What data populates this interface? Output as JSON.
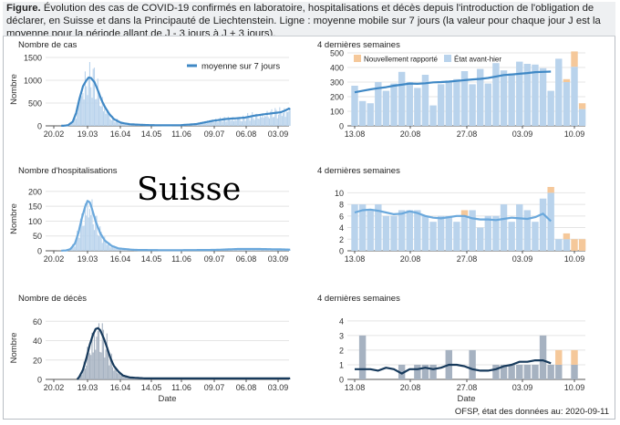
{
  "caption": {
    "label": "Figure.",
    "text": "Évolution des cas de COVID-19 confirmés en laboratoire, hospitalisations et décès depuis l'introduction de l'obligation de déclarer, en Suisse et dans la Principauté de Liechtenstein. Ligne : moyenne mobile sur 7 jours (la valeur pour chaque jour J est la moyenne pour la période allant de J - 3 jours à J + 3 jours)."
  },
  "country_label": "Suisse",
  "source": "OFSP, état des données au: 2020-09-11",
  "colors": {
    "cases_bar": "#b9d3ec",
    "cases_line": "#3f88c5",
    "hosp_bar": "#b9d3ec",
    "hosp_line": "#6aa8dc",
    "death_bar": "#a6b2c1",
    "death_line": "#173a5c",
    "new_reported": "#f5c89a",
    "grid": "#e4e4e4"
  },
  "chart_data": [
    {
      "id": "cases-overview",
      "type": "bar",
      "title": "Nombre de cas",
      "ylabel": "Nombre",
      "xlabel": "",
      "ylim": [
        0,
        1600
      ],
      "yticks": [
        0,
        500,
        1000,
        1500
      ],
      "xticks": [
        "20.02",
        "19.03",
        "16.04",
        "14.05",
        "11.06",
        "09.07",
        "06.08",
        "03.09"
      ],
      "legend": "moyenne sur 7 jours",
      "series_anchor": [
        [
          0,
          0
        ],
        [
          8,
          2
        ],
        [
          12,
          15
        ],
        [
          16,
          90
        ],
        [
          19,
          280
        ],
        [
          22,
          600
        ],
        [
          25,
          870
        ],
        [
          28,
          1000
        ],
        [
          30,
          1060
        ],
        [
          32,
          1050
        ],
        [
          35,
          960
        ],
        [
          38,
          780
        ],
        [
          41,
          580
        ],
        [
          44,
          420
        ],
        [
          48,
          260
        ],
        [
          52,
          150
        ],
        [
          58,
          70
        ],
        [
          66,
          35
        ],
        [
          80,
          18
        ],
        [
          96,
          12
        ],
        [
          110,
          14
        ],
        [
          124,
          40
        ],
        [
          138,
          110
        ],
        [
          150,
          150
        ],
        [
          158,
          165
        ],
        [
          166,
          180
        ],
        [
          174,
          220
        ],
        [
          182,
          250
        ],
        [
          190,
          275
        ],
        [
          198,
          300
        ],
        [
          202,
          340
        ],
        [
          205,
          380
        ],
        [
          206,
          360
        ]
      ],
      "bar_peak": 1400
    },
    {
      "id": "cases-last4weeks",
      "type": "bar",
      "title": "4 dernières semaines",
      "ylim": [
        0,
        500
      ],
      "yticks": [
        0,
        100,
        200,
        300,
        400,
        500
      ],
      "xticks": [
        "13.08",
        "20.08",
        "27.08",
        "03.09",
        "10.09"
      ],
      "legend": [
        "Nouvellement rapporté",
        "État avant-hier"
      ],
      "values": [
        275,
        170,
        155,
        300,
        240,
        290,
        370,
        300,
        260,
        350,
        140,
        285,
        310,
        320,
        375,
        285,
        390,
        290,
        430,
        380,
        360,
        440,
        425,
        420,
        395,
        240,
        460,
        300,
        405,
        115
      ],
      "new_reported": [
        0,
        0,
        0,
        0,
        0,
        0,
        0,
        0,
        0,
        0,
        0,
        0,
        0,
        0,
        0,
        0,
        0,
        0,
        0,
        0,
        0,
        0,
        0,
        0,
        0,
        0,
        0,
        20,
        105,
        40
      ],
      "moving_avg": [
        230,
        240,
        250,
        258,
        265,
        275,
        282,
        290,
        288,
        292,
        298,
        300,
        303,
        308,
        313,
        318,
        322,
        328,
        338,
        348,
        352,
        357,
        362,
        368,
        370,
        372
      ]
    },
    {
      "id": "hosp-overview",
      "type": "bar",
      "title": "Nombre d'hospitalisations",
      "ylabel": "Nombre",
      "ylim": [
        0,
        215
      ],
      "yticks": [
        0,
        50,
        100,
        150,
        200
      ],
      "xticks": [
        "20.02",
        "19.03",
        "16.04",
        "14.05",
        "11.06",
        "09.07",
        "06.08",
        "03.09"
      ],
      "series_anchor": [
        [
          0,
          0
        ],
        [
          10,
          1
        ],
        [
          14,
          6
        ],
        [
          18,
          25
        ],
        [
          21,
          60
        ],
        [
          24,
          110
        ],
        [
          27,
          150
        ],
        [
          29,
          168
        ],
        [
          31,
          163
        ],
        [
          33,
          140
        ],
        [
          36,
          100
        ],
        [
          40,
          60
        ],
        [
          44,
          35
        ],
        [
          50,
          17
        ],
        [
          56,
          8
        ],
        [
          70,
          3
        ],
        [
          100,
          2
        ],
        [
          140,
          3
        ],
        [
          160,
          6
        ],
        [
          180,
          6
        ],
        [
          196,
          5
        ],
        [
          206,
          4
        ]
      ],
      "bar_peak": 205
    },
    {
      "id": "hosp-last4weeks",
      "type": "bar",
      "title": "4 dernières semaines",
      "ylim": [
        0,
        11
      ],
      "yticks": [
        0,
        2,
        4,
        6,
        8,
        10
      ],
      "xticks": [
        "13.08",
        "20.08",
        "27.08",
        "03.09",
        "10.09"
      ],
      "values": [
        8,
        8,
        7,
        8,
        6,
        6,
        7,
        7,
        7,
        6,
        5,
        6,
        6,
        5,
        6,
        7,
        4,
        6,
        6,
        8,
        5,
        8,
        7,
        5,
        9,
        10,
        2,
        2,
        0,
        0
      ],
      "new_reported": [
        0,
        0,
        0,
        0,
        0,
        0,
        0,
        0,
        0,
        0,
        0,
        0,
        0,
        0,
        1,
        0,
        0,
        0,
        0,
        0,
        0,
        0,
        0,
        0,
        0,
        1,
        0,
        1,
        2,
        2
      ],
      "moving_avg": [
        6.6,
        7.0,
        7.1,
        6.9,
        6.6,
        6.3,
        6.4,
        6.8,
        6.5,
        6.0,
        5.7,
        5.6,
        5.8,
        6.0,
        6.0,
        5.6,
        5.4,
        5.4,
        5.3,
        5.5,
        5.7,
        5.6,
        5.5,
        5.8,
        6.4,
        5.1
      ]
    },
    {
      "id": "deaths-overview",
      "type": "bar",
      "title": "Nombre de décès",
      "ylabel": "Nombre",
      "xlabel": "Date",
      "ylim": [
        0,
        65
      ],
      "yticks": [
        0,
        20,
        40,
        60
      ],
      "xticks": [
        "20.02",
        "19.03",
        "16.04",
        "14.05",
        "11.06",
        "09.07",
        "06.08",
        "03.09"
      ],
      "series_anchor": [
        [
          0,
          0
        ],
        [
          20,
          0
        ],
        [
          22,
          3
        ],
        [
          25,
          10
        ],
        [
          28,
          22
        ],
        [
          31,
          36
        ],
        [
          34,
          47
        ],
        [
          36,
          52
        ],
        [
          38,
          53
        ],
        [
          40,
          51
        ],
        [
          43,
          43
        ],
        [
          46,
          33
        ],
        [
          49,
          22
        ],
        [
          52,
          14
        ],
        [
          56,
          8
        ],
        [
          60,
          4
        ],
        [
          66,
          2
        ],
        [
          80,
          1
        ],
        [
          110,
          1
        ],
        [
          160,
          1
        ],
        [
          206,
          1
        ]
      ],
      "bar_peak": 58
    },
    {
      "id": "deaths-last4weeks",
      "type": "bar",
      "title": "4 dernières semaines",
      "xlabel": "Date",
      "ylim": [
        0,
        4.3
      ],
      "yticks": [
        0,
        1,
        2,
        3,
        4
      ],
      "xticks": [
        "13.08",
        "20.08",
        "27.08",
        "03.09",
        "10.09"
      ],
      "values": [
        0,
        3,
        0,
        0,
        0,
        0,
        1,
        0,
        1,
        1,
        1,
        0,
        2,
        0,
        0,
        2,
        0,
        0,
        1,
        1,
        1,
        1,
        1,
        1,
        3,
        1,
        1,
        0,
        1,
        0
      ],
      "new_reported": [
        0,
        0,
        0,
        0,
        0,
        0,
        0,
        0,
        0,
        0,
        0,
        0,
        0,
        0,
        0,
        0,
        0,
        0,
        0,
        0,
        0,
        0,
        0,
        0,
        0,
        0,
        1,
        0,
        1,
        0
      ],
      "moving_avg": [
        0.7,
        0.7,
        0.7,
        0.6,
        0.8,
        0.7,
        0.4,
        0.7,
        0.7,
        0.8,
        0.7,
        0.8,
        1.0,
        1.0,
        0.9,
        0.7,
        0.6,
        0.6,
        0.7,
        0.9,
        1.0,
        1.2,
        1.2,
        1.3,
        1.3,
        1.1
      ]
    }
  ]
}
